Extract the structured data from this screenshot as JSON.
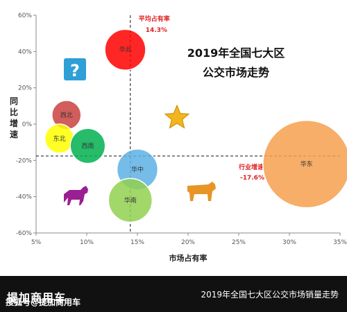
{
  "chart_data": {
    "type": "scatter",
    "title": "2019年全国七大区\n公交市场走势",
    "xlabel": "市场占有率",
    "ylabel": "同比增速",
    "xlim": [
      5,
      35
    ],
    "ylim": [
      -60,
      60
    ],
    "x_ticks": [
      "5%",
      "10%",
      "15%",
      "20%",
      "25%",
      "30%",
      "35%"
    ],
    "y_ticks": [
      "60%",
      "40%",
      "20%",
      "0%",
      "-20%",
      "-40%",
      "-60%"
    ],
    "avg_share": {
      "label": "平均占有率",
      "value_label": "14.3%",
      "value": 14.3
    },
    "industry_growth": {
      "label": "行业增速",
      "value_label": "-17.6%",
      "value": -17.6
    },
    "points": [
      {
        "name": "华北",
        "x": 13.8,
        "y": 41,
        "size": 7,
        "color": "#ff0000"
      },
      {
        "name": "西北",
        "x": 8.0,
        "y": 5,
        "size": 5,
        "color": "#c9423f"
      },
      {
        "name": "东北",
        "x": 7.3,
        "y": -8,
        "size": 5,
        "color": "#ffff00"
      },
      {
        "name": "西南",
        "x": 10.1,
        "y": -12,
        "size": 6,
        "color": "#00b050"
      },
      {
        "name": "华中",
        "x": 15.0,
        "y": -25,
        "size": 7,
        "color": "#5db1e4"
      },
      {
        "name": "华南",
        "x": 14.3,
        "y": -42,
        "size": 7.5,
        "color": "#92d050"
      },
      {
        "name": "华东",
        "x": 31.7,
        "y": -22,
        "size": 15,
        "color": "#f6a04d"
      }
    ]
  },
  "footer": {
    "logo": "提加商用车",
    "watermark": "搜狐号@提加商用车",
    "caption": "2019年全国七大区公交市场销量走势"
  },
  "decorations": {
    "question_icon": "question-icon",
    "star_icon": "star-icon",
    "dog_icon": "dog-icon",
    "cow_icon": "cow-icon"
  }
}
